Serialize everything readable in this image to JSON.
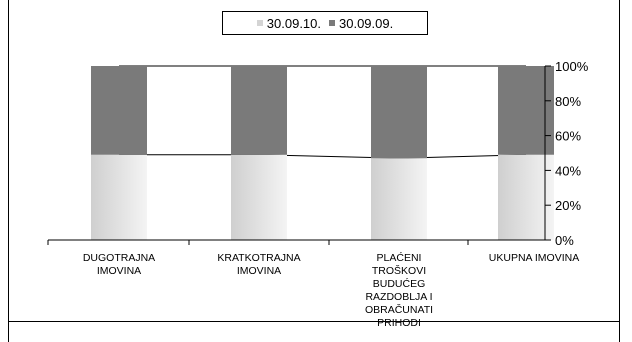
{
  "chart_data": {
    "type": "bar",
    "stacked": "percent",
    "categories": [
      "DUGOTRAJNA IMOVINA",
      "KRATKOTRAJNA IMOVINA",
      "PLAĆENI TROŠKOVI BUDUĆEG RAZDOBLJA I OBRAČUNATI PRIHODI",
      "UKUPNA IMOVINA"
    ],
    "category_label_lines": [
      [
        "DUGOTRAJNA",
        "IMOVINA"
      ],
      [
        "KRATKOTRAJNA",
        "IMOVINA"
      ],
      [
        "PLAĆENI",
        "TROŠKOVI",
        "BUDUĆEG",
        "RAZDOBLJA I",
        "OBRAČUNATI",
        "PRIHODI"
      ],
      [
        "UKUPNA IMOVINA"
      ]
    ],
    "series": [
      {
        "name": "30.09.10.",
        "values": [
          49,
          49,
          47,
          49
        ]
      },
      {
        "name": "30.09.09.",
        "values": [
          51,
          51,
          53,
          51
        ]
      }
    ],
    "y_ticks": [
      "0%",
      "20%",
      "40%",
      "60%",
      "80%",
      "100%"
    ],
    "ylim": [
      0,
      100
    ],
    "y_axis_side": "right",
    "legend_position": "top",
    "series_colors": [
      "#d4d4d4",
      "#7a7a7a"
    ],
    "grid": false
  }
}
